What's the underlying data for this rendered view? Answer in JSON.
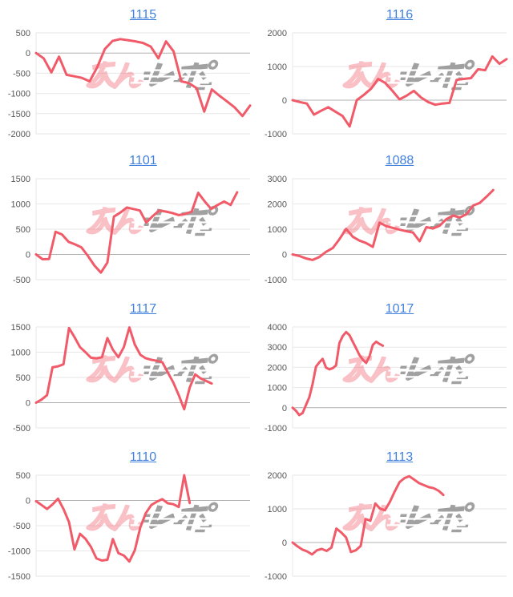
{
  "page": {
    "background": "#ffffff",
    "title_link_color": "#4080df",
    "line_color": "#f15b69",
    "grid_color": "#e7e7e7",
    "zero_line_color": "#b0b0b0",
    "axis_label_color": "#565656"
  },
  "watermark": {
    "name": "minrepo-logo-watermark",
    "pink_text": "みん",
    "gray_text": "レポ",
    "pink_color": "#f05b69",
    "pink_opacity": 0.38,
    "gray_color": "#8a8a8a",
    "gray_opacity": 0.8
  },
  "chart_data": [
    {
      "type": "line",
      "title": "1115",
      "ylim": [
        -2000,
        500
      ],
      "yticks": [
        500,
        0,
        -500,
        -1000,
        -1500,
        -2000
      ],
      "x_total": 29,
      "values": [
        0,
        -130,
        -480,
        -90,
        -540,
        -575,
        -615,
        -700,
        -350,
        100,
        300,
        345,
        320,
        290,
        250,
        160,
        -130,
        290,
        40,
        -700,
        -745,
        -870,
        -1450,
        -900,
        -1060,
        -1200,
        -1350,
        -1560,
        -1300
      ]
    },
    {
      "type": "line",
      "title": "1116",
      "ylim": [
        -1000,
        2000
      ],
      "yticks": [
        2000,
        1000,
        0,
        -1000
      ],
      "x_total": 31,
      "values": [
        0,
        -55,
        -100,
        -430,
        -315,
        -210,
        -340,
        -470,
        -780,
        0,
        160,
        340,
        630,
        510,
        275,
        25,
        135,
        275,
        80,
        -55,
        -135,
        -100,
        -80,
        605,
        630,
        655,
        920,
        890,
        1300,
        1080,
        1220
      ]
    },
    {
      "type": "line",
      "title": "1101",
      "ylim": [
        -500,
        1500
      ],
      "yticks": [
        1500,
        1000,
        500,
        0,
        -500
      ],
      "x_total": 34,
      "values": [
        0,
        -95,
        -90,
        450,
        395,
        250,
        200,
        140,
        -30,
        -220,
        -360,
        -160,
        750,
        830,
        930,
        900,
        870,
        630,
        760,
        870,
        850,
        820,
        780,
        800,
        850,
        1220,
        1050,
        900,
        980,
        1050,
        980,
        1230
      ]
    },
    {
      "type": "line",
      "title": "1088",
      "ylim": [
        -1000,
        3000
      ],
      "yticks": [
        3000,
        2000,
        1000,
        0,
        -1000
      ],
      "x_total": 33,
      "values": [
        0,
        -60,
        -160,
        -220,
        -100,
        100,
        250,
        600,
        1010,
        700,
        550,
        450,
        300,
        1260,
        1120,
        1050,
        980,
        920,
        870,
        520,
        1080,
        1030,
        1140,
        1400,
        1540,
        1465,
        1590,
        1935,
        2040,
        2290,
        2550
      ]
    },
    {
      "type": "line",
      "title": "1117",
      "ylim": [
        -500,
        1500
      ],
      "yticks": [
        1500,
        1000,
        500,
        0,
        -500
      ],
      "x_total": 40,
      "values": [
        0,
        60,
        150,
        700,
        720,
        760,
        1480,
        1300,
        1100,
        1000,
        890,
        880,
        900,
        1280,
        1050,
        900,
        1100,
        1490,
        1150,
        950,
        880,
        850,
        830,
        800,
        600,
        400,
        150,
        -130,
        300,
        560,
        480,
        430,
        380
      ]
    },
    {
      "type": "line",
      "title": "1017",
      "ylim": [
        -1000,
        4000
      ],
      "yticks": [
        4000,
        3000,
        2000,
        1000,
        0,
        -1000
      ],
      "x_total": 65,
      "values": [
        0,
        -150,
        -360,
        -260,
        130,
        520,
        1180,
        2030,
        2250,
        2420,
        1990,
        1900,
        1960,
        2090,
        3200,
        3550,
        3750,
        3600,
        3270,
        2940,
        2610,
        2380,
        2220,
        2550,
        3110,
        3270,
        3160,
        3070
      ]
    },
    {
      "type": "line",
      "title": "1110",
      "ylim": [
        -1500,
        500
      ],
      "yticks": [
        500,
        0,
        -500,
        -1000,
        -1500
      ],
      "x_total": 40,
      "values": [
        -15,
        -90,
        -170,
        -80,
        35,
        -170,
        -430,
        -970,
        -660,
        -760,
        -920,
        -1150,
        -1190,
        -1175,
        -765,
        -1045,
        -1090,
        -1210,
        -985,
        -530,
        -250,
        -90,
        -25,
        25,
        -55,
        -75,
        -130,
        500,
        -50
      ]
    },
    {
      "type": "line",
      "title": "1113",
      "ylim": [
        -1000,
        2000
      ],
      "yticks": [
        2000,
        1000,
        0,
        -1000
      ],
      "x_total": 45,
      "values": [
        0,
        -115,
        -210,
        -265,
        -355,
        -230,
        -190,
        -250,
        -150,
        415,
        300,
        150,
        -280,
        -230,
        -100,
        700,
        645,
        1160,
        1005,
        960,
        1210,
        1515,
        1795,
        1915,
        1970,
        1870,
        1765,
        1705,
        1645,
        1615,
        1540,
        1415
      ]
    }
  ]
}
